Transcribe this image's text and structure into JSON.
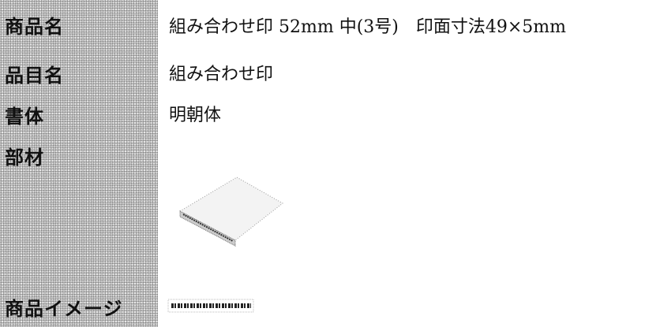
{
  "table": {
    "rows": [
      {
        "label": "商品名",
        "value": "組み合わせ印 52mm 中(3号)　印面寸法49×5mm"
      },
      {
        "label": "品目名",
        "value": "組み合わせ印"
      },
      {
        "label": "書体",
        "value": "明朝体"
      },
      {
        "label": "部材"
      },
      {
        "label": "商品イメージ"
      }
    ]
  }
}
